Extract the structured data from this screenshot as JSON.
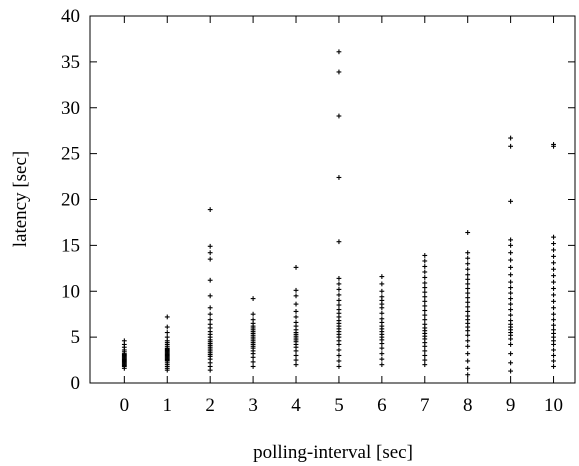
{
  "chart_data": {
    "type": "scatter",
    "title": "",
    "xlabel": "polling-interval [sec]",
    "ylabel": "latency [sec]",
    "xlim": [
      -0.8,
      10.5
    ],
    "ylim": [
      0,
      40
    ],
    "xticks": [
      0,
      1,
      2,
      3,
      4,
      5,
      6,
      7,
      8,
      9,
      10
    ],
    "yticks": [
      0,
      5,
      10,
      15,
      20,
      25,
      30,
      35,
      40
    ],
    "grid": false,
    "legend": "none",
    "marker": "plus",
    "color": "#000000",
    "series": [
      {
        "x": 0,
        "y": [
          1.6,
          1.8,
          1.9,
          2.0,
          2.1,
          2.2,
          2.3,
          2.4,
          2.5,
          2.6,
          2.7,
          2.8,
          2.9,
          3.0,
          3.1,
          3.2,
          3.4,
          3.6,
          3.9,
          4.2,
          4.6
        ]
      },
      {
        "x": 1,
        "y": [
          1.4,
          1.6,
          1.8,
          2.0,
          2.2,
          2.4,
          2.5,
          2.6,
          2.7,
          2.8,
          2.9,
          3.0,
          3.1,
          3.2,
          3.3,
          3.4,
          3.5,
          3.6,
          3.7,
          3.8,
          4.0,
          4.2,
          4.4,
          4.6,
          5.0,
          5.5,
          6.1,
          7.2
        ]
      },
      {
        "x": 2,
        "y": [
          1.4,
          1.8,
          2.2,
          2.6,
          2.9,
          3.1,
          3.3,
          3.5,
          3.7,
          3.9,
          4.1,
          4.3,
          4.5,
          4.7,
          5.0,
          5.3,
          5.6,
          6.0,
          6.4,
          6.9,
          7.5,
          8.2,
          9.5,
          11.2,
          13.5,
          14.2,
          14.9,
          18.9
        ]
      },
      {
        "x": 3,
        "y": [
          1.8,
          2.3,
          2.8,
          3.2,
          3.5,
          3.8,
          4.0,
          4.2,
          4.4,
          4.6,
          4.8,
          5.0,
          5.2,
          5.4,
          5.6,
          5.8,
          6.0,
          6.2,
          6.5,
          6.9,
          7.5,
          9.2
        ]
      },
      {
        "x": 4,
        "y": [
          2.0,
          2.5,
          3.0,
          3.5,
          3.9,
          4.2,
          4.5,
          4.7,
          4.9,
          5.1,
          5.3,
          5.5,
          5.8,
          6.2,
          6.6,
          7.2,
          7.8,
          8.6,
          9.5,
          10.1,
          12.6
        ]
      },
      {
        "x": 5,
        "y": [
          1.8,
          2.4,
          3.0,
          3.6,
          4.2,
          4.6,
          5.0,
          5.3,
          5.6,
          5.9,
          6.2,
          6.5,
          6.8,
          7.2,
          7.6,
          8.0,
          8.5,
          9.0,
          9.6,
          10.2,
          10.8,
          11.4,
          15.4,
          22.4,
          29.1,
          33.9,
          36.1
        ]
      },
      {
        "x": 6,
        "y": [
          2.0,
          2.6,
          3.2,
          3.8,
          4.3,
          4.7,
          5.0,
          5.3,
          5.6,
          5.9,
          6.2,
          6.6,
          7.0,
          7.6,
          8.2,
          8.6,
          9.0,
          9.4,
          10.0,
          10.8,
          11.6
        ]
      },
      {
        "x": 7,
        "y": [
          2.0,
          2.5,
          3.0,
          3.5,
          4.0,
          4.4,
          4.8,
          5.1,
          5.4,
          5.7,
          6.0,
          6.4,
          6.9,
          7.4,
          7.9,
          8.4,
          8.9,
          9.4,
          9.9,
          10.4,
          10.9,
          11.5,
          12.1,
          12.7,
          13.3,
          13.9
        ]
      },
      {
        "x": 8,
        "y": [
          0.9,
          1.6,
          2.4,
          3.2,
          4.0,
          4.6,
          5.2,
          5.7,
          6.1,
          6.5,
          6.9,
          7.3,
          7.8,
          8.3,
          8.8,
          9.3,
          9.8,
          10.3,
          10.8,
          11.3,
          11.8,
          12.4,
          13.0,
          13.6,
          14.2,
          16.4
        ]
      },
      {
        "x": 9,
        "y": [
          1.3,
          2.2,
          3.2,
          4.2,
          4.8,
          5.2,
          5.5,
          5.8,
          6.1,
          6.4,
          6.8,
          7.4,
          8.0,
          8.6,
          9.2,
          9.8,
          10.4,
          11.0,
          11.8,
          12.6,
          13.4,
          14.2,
          15.0,
          15.6,
          19.8,
          25.8,
          26.7
        ]
      },
      {
        "x": 10,
        "y": [
          1.8,
          2.4,
          3.0,
          3.6,
          4.2,
          4.6,
          5.0,
          5.4,
          5.8,
          6.3,
          6.9,
          7.5,
          8.2,
          8.9,
          9.6,
          10.3,
          11.0,
          11.7,
          12.4,
          13.1,
          13.8,
          14.5,
          15.2,
          15.9,
          25.8,
          26.0
        ]
      }
    ]
  }
}
